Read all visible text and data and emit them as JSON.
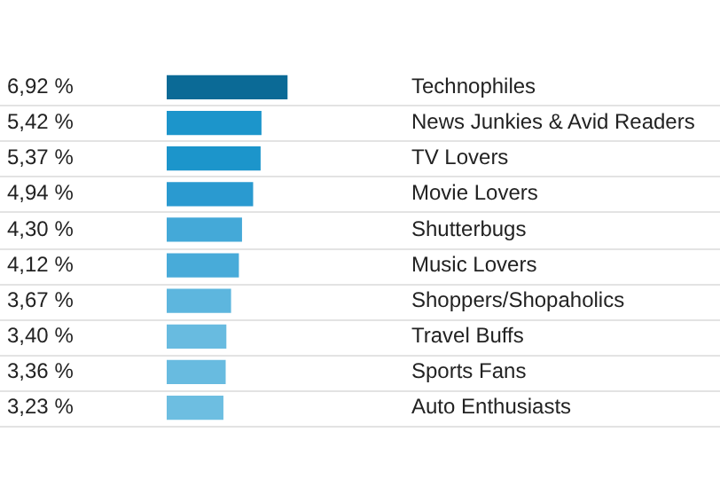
{
  "chart_data": {
    "type": "bar",
    "orientation": "horizontal",
    "tick_labels": "y",
    "grid": "y",
    "legend": false,
    "categories": [
      "Technophiles",
      "News Junkies & Avid Readers",
      "TV Lovers",
      "Movie Lovers",
      "Shutterbugs",
      "Music Lovers",
      "Shoppers/Shopaholics",
      "Travel Buffs",
      "Sports Fans",
      "Auto Enthusiasts"
    ],
    "values": [
      6.92,
      5.42,
      5.37,
      4.94,
      4.3,
      4.12,
      3.67,
      3.4,
      3.36,
      3.23
    ],
    "value_labels": [
      "6,92 %",
      "5,42 %",
      "5,37 %",
      "4,94 %",
      "4,30 %",
      "4,12 %",
      "3,67 %",
      "3,40 %",
      "3,36 %",
      "3,23 %"
    ],
    "colors": [
      "#0b6a96",
      "#1c95cb",
      "#1c95cb",
      "#2a9ad0",
      "#44a9d8",
      "#48abd9",
      "#5db6de",
      "#68bbe0",
      "#68bbe0",
      "#6dbee1"
    ]
  }
}
